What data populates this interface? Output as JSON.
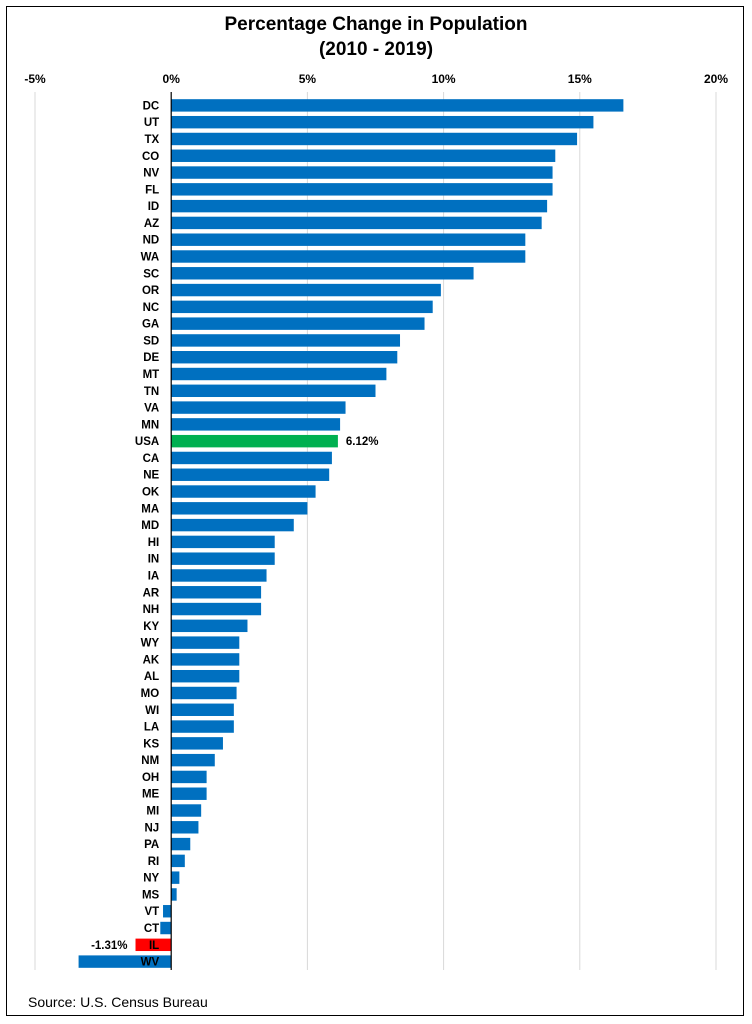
{
  "chart_data": {
    "type": "bar",
    "orientation": "horizontal",
    "title": "Percentage Change in Population",
    "subtitle": "(2010 - 2019)",
    "source": "Source: U.S. Census Bureau",
    "xlim": [
      -5,
      20
    ],
    "x_ticks": [
      -5,
      0,
      5,
      10,
      15,
      20
    ],
    "x_tick_labels": [
      "-5%",
      "0%",
      "5%",
      "10%",
      "15%",
      "20%"
    ],
    "x_axis_position": "top",
    "grid": "vertical",
    "categories": [
      "DC",
      "UT",
      "TX",
      "CO",
      "NV",
      "FL",
      "ID",
      "AZ",
      "ND",
      "WA",
      "SC",
      "OR",
      "NC",
      "GA",
      "SD",
      "DE",
      "MT",
      "TN",
      "VA",
      "MN",
      "USA",
      "CA",
      "NE",
      "OK",
      "MA",
      "MD",
      "HI",
      "IN",
      "IA",
      "AR",
      "NH",
      "KY",
      "WY",
      "AK",
      "AL",
      "MO",
      "WI",
      "LA",
      "KS",
      "NM",
      "OH",
      "ME",
      "MI",
      "NJ",
      "PA",
      "RI",
      "NY",
      "MS",
      "VT",
      "CT",
      "IL",
      "WV"
    ],
    "values": [
      16.6,
      15.5,
      14.9,
      14.1,
      14.0,
      14.0,
      13.8,
      13.6,
      13.0,
      13.0,
      11.1,
      9.9,
      9.6,
      9.3,
      8.4,
      8.3,
      7.9,
      7.5,
      6.4,
      6.2,
      6.12,
      5.9,
      5.8,
      5.3,
      5.0,
      4.5,
      3.8,
      3.8,
      3.5,
      3.3,
      3.3,
      2.8,
      2.5,
      2.5,
      2.5,
      2.4,
      2.3,
      2.3,
      1.9,
      1.6,
      1.3,
      1.3,
      1.1,
      1.0,
      0.7,
      0.5,
      0.3,
      0.2,
      -0.3,
      -0.4,
      -1.31,
      -3.4
    ],
    "colors": {
      "default": "#0070C0",
      "USA": "#00B050",
      "IL": "#FF0000"
    },
    "data_labels": {
      "USA": "6.12%",
      "IL": "-1.31%"
    }
  }
}
